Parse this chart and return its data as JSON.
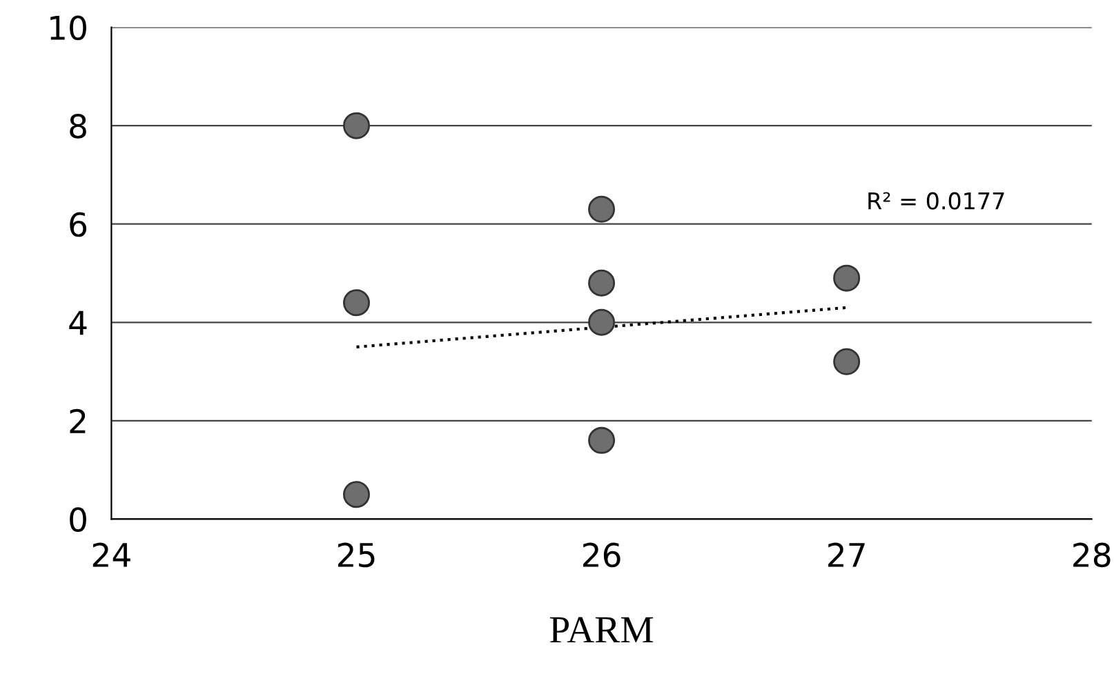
{
  "chart_data": {
    "type": "scatter",
    "xlabel": "PARM",
    "series": [
      {
        "color": "#6e6e6e",
        "x": [
          25,
          25,
          25,
          26,
          26,
          26,
          26,
          27,
          27
        ],
        "values": [
          8.0,
          4.4,
          0.5,
          6.3,
          4.8,
          4.0,
          1.6,
          4.9,
          3.2
        ],
        "marker": "circle"
      },
      {
        "type": "line",
        "color": "#000000",
        "x": [
          25,
          27
        ],
        "values": [
          3.5,
          4.3
        ],
        "line_style": "dotted",
        "marker": "none"
      }
    ],
    "annotations": [
      "R² = 0.0177"
    ],
    "xlim": [
      24,
      28
    ],
    "xticks": [
      24,
      25,
      26,
      27,
      28
    ],
    "ylim": [
      0,
      10
    ],
    "yticks": [
      0,
      2,
      4,
      6,
      8,
      10
    ],
    "grid": "y"
  }
}
